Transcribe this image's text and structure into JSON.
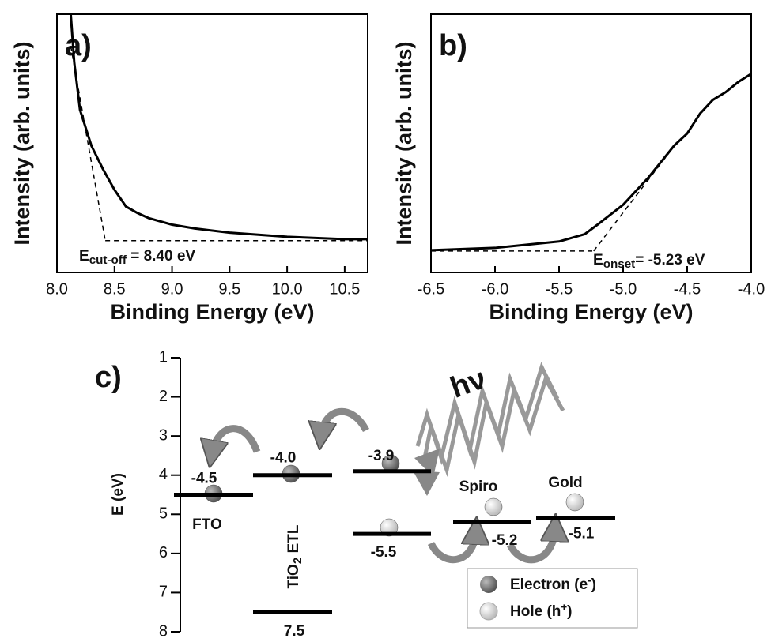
{
  "chart_data": [
    {
      "type": "line",
      "panel_label": "a)",
      "xlabel": "Binding Energy (eV)",
      "ylabel": "Intensity (arb. units)",
      "xlim": [
        8.0,
        10.7
      ],
      "ylim": [
        0,
        1
      ],
      "xticks": [
        {
          "value": 8.0,
          "label": "8.0"
        },
        8.5,
        {
          "value": 9.0,
          "label": "9.0"
        },
        9.5,
        {
          "value": 10.0,
          "label": "10.0"
        },
        10.5
      ],
      "series": [
        {
          "color": "#000000",
          "x": [
            8.12,
            8.15,
            8.2,
            8.3,
            8.4,
            8.5,
            8.6,
            8.7,
            8.8,
            9.0,
            9.2,
            9.5,
            10.0,
            10.5,
            10.7
          ],
          "values": [
            1.0,
            0.815,
            0.63,
            0.49,
            0.4,
            0.32,
            0.255,
            0.23,
            0.21,
            0.185,
            0.17,
            0.154,
            0.138,
            0.129,
            0.129
          ]
        }
      ],
      "fit_lines": [
        {
          "x": [
            8.12,
            8.42
          ],
          "y": [
            0.877,
            0.123
          ]
        },
        {
          "x": [
            8.42,
            10.7
          ],
          "y": [
            0.123,
            0.123
          ]
        }
      ],
      "annotation": {
        "main": "E",
        "sub": "cut-off",
        "rest": " = 8.40 eV"
      }
    },
    {
      "type": "line",
      "panel_label": "b)",
      "xlabel": "Binding Energy (eV)",
      "ylabel": "Intensity (arb. units)",
      "xlim": [
        -6.5,
        -4.0
      ],
      "ylim": [
        0,
        1
      ],
      "xticks": [
        -6.5,
        {
          "value": -6.0,
          "label": "-6.0"
        },
        -5.5,
        {
          "value": -5.0,
          "label": "-5.0"
        },
        -4.5,
        {
          "value": -4.0,
          "label": "-4.0"
        }
      ],
      "series": [
        {
          "color": "#000000",
          "x": [
            -6.5,
            -6.0,
            -5.5,
            -5.3,
            -5.2,
            -5.0,
            -4.8,
            -4.6,
            -4.5,
            -4.4,
            -4.3,
            -4.2,
            -4.1,
            -4.0
          ],
          "values": [
            0.086,
            0.095,
            0.12,
            0.148,
            0.185,
            0.262,
            0.369,
            0.492,
            0.538,
            0.615,
            0.668,
            0.698,
            0.738,
            0.769
          ]
        }
      ],
      "fit_lines": [
        {
          "x": [
            -6.5,
            -5.23
          ],
          "y": [
            0.083,
            0.083
          ]
        },
        {
          "x": [
            -5.23,
            -4.6
          ],
          "y": [
            0.083,
            0.49
          ]
        }
      ],
      "annotation": {
        "main": "E",
        "sub": "onset",
        "rest": "= -5.23 eV"
      }
    },
    {
      "type": "energy-levels",
      "panel_label": "c)",
      "ylabel": "E (eV)",
      "ylim": [
        1,
        8
      ],
      "y_inverted": true,
      "yticks": [
        1,
        2,
        3,
        4,
        5,
        6,
        7,
        8
      ],
      "annotation": "hν",
      "materials": [
        {
          "name": {
            "main": "FTO"
          },
          "levels": [
            {
              "value": 4.5,
              "label": "-4.5"
            }
          ]
        },
        {
          "name": {
            "main": "TiO",
            "sub": "2",
            "rest": " ETL"
          },
          "levels": [
            {
              "value": 4.0,
              "label": "-4.0"
            },
            {
              "value": 7.5,
              "label": "7.5"
            }
          ]
        },
        {
          "levels": [
            {
              "value": 3.9,
              "label": "-3.9"
            },
            {
              "value": 5.5,
              "label": "-5.5"
            }
          ]
        },
        {
          "name": {
            "main": "Spiro"
          },
          "levels": [
            {
              "value": 5.2,
              "label": "-5.2"
            }
          ]
        },
        {
          "name": {
            "main": "Gold"
          },
          "levels": [
            {
              "value": 5.1,
              "label": "-5.1"
            }
          ]
        }
      ],
      "legend": [
        {
          "main": "Electron (e",
          "sup": "-",
          "end": ")"
        },
        {
          "main": "Hole (h",
          "sup": "+",
          "end": ")"
        }
      ]
    }
  ]
}
